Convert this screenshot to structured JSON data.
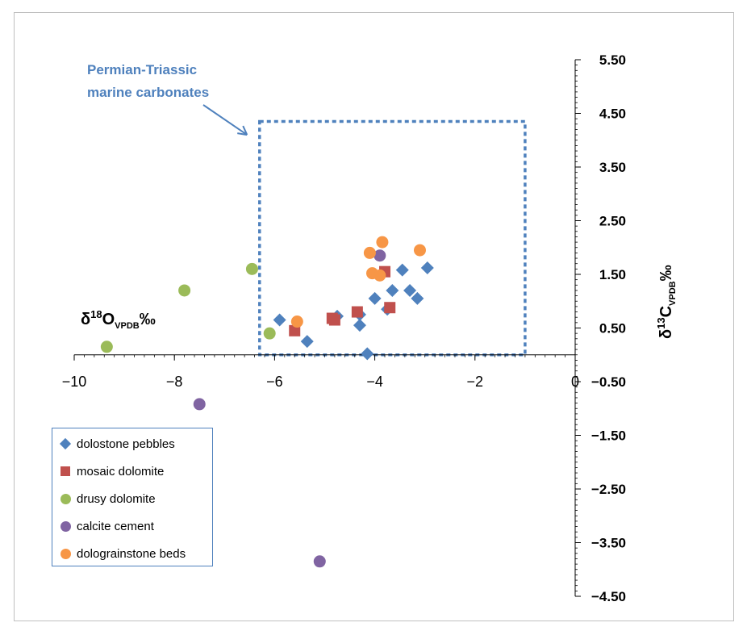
{
  "chart_data": {
    "type": "scatter",
    "title": "",
    "xlabel": "δ18O VPDB ‰",
    "ylabel": "δ13C VPDB ‰",
    "xlabel_parts": {
      "delta": "δ",
      "sup": "18",
      "base": "O",
      "sub": "VPDB",
      "unit": "‰"
    },
    "ylabel_parts": {
      "delta": "δ",
      "sup": "13",
      "base": "C",
      "sub": "VPDB",
      "unit": "‰"
    },
    "xlim": [
      -10,
      0
    ],
    "ylim": [
      -4.5,
      5.5
    ],
    "x_ticks": [
      -10,
      -8,
      -6,
      -4,
      -2,
      0
    ],
    "x_tick_labels": [
      "−10",
      "−8",
      "−6",
      "−4",
      "−2",
      "0"
    ],
    "y_ticks": [
      5.5,
      4.5,
      3.5,
      2.5,
      1.5,
      0.5,
      -0.5,
      -1.5,
      -2.5,
      -3.5,
      -4.5
    ],
    "y_tick_labels": [
      "5.50",
      "4.50",
      "3.50",
      "2.50",
      "1.50",
      "0.50",
      "−0.50",
      "−1.50",
      "−2.50",
      "−3.50",
      "−4.50"
    ],
    "grid": false,
    "legend_position": "bottom-left",
    "annotation": {
      "lines": [
        "Permian-Triassic",
        "marine carbonates"
      ],
      "box": {
        "x0": -6.3,
        "x1": -1.0,
        "y0": 0.0,
        "y1": 4.35
      },
      "arrow_to": {
        "x": -6.55,
        "y": 4.1
      }
    },
    "series": [
      {
        "name": "dolostone pebbles",
        "marker": "diamond",
        "color": "#4f81bd",
        "points": [
          [
            -5.9,
            0.65
          ],
          [
            -5.35,
            0.25
          ],
          [
            -4.75,
            0.72
          ],
          [
            -4.3,
            0.55
          ],
          [
            -4.3,
            0.75
          ],
          [
            -4.15,
            0.02
          ],
          [
            -4.0,
            1.05
          ],
          [
            -3.75,
            0.85
          ],
          [
            -3.65,
            1.2
          ],
          [
            -3.45,
            1.58
          ],
          [
            -3.3,
            1.2
          ],
          [
            -3.15,
            1.05
          ],
          [
            -2.95,
            1.62
          ]
        ]
      },
      {
        "name": "mosaic dolomite",
        "marker": "square",
        "color": "#c0504d",
        "points": [
          [
            -5.6,
            0.45
          ],
          [
            -4.85,
            0.68
          ],
          [
            -4.8,
            0.65
          ],
          [
            -4.35,
            0.8
          ],
          [
            -3.8,
            1.55
          ],
          [
            -3.7,
            0.88
          ]
        ]
      },
      {
        "name": "drusy dolomite",
        "marker": "circle",
        "color": "#9bbb59",
        "points": [
          [
            -9.35,
            0.15
          ],
          [
            -7.8,
            1.2
          ],
          [
            -6.45,
            1.6
          ],
          [
            -6.1,
            0.4
          ]
        ]
      },
      {
        "name": "calcite cement",
        "marker": "circle",
        "color": "#8064a2",
        "points": [
          [
            -7.5,
            -0.92
          ],
          [
            -5.1,
            -3.85
          ],
          [
            -3.9,
            1.85
          ]
        ]
      },
      {
        "name": "dolograinstone beds",
        "marker": "circle",
        "color": "#f79646",
        "points": [
          [
            -5.55,
            0.62
          ],
          [
            -4.1,
            1.9
          ],
          [
            -4.05,
            1.52
          ],
          [
            -3.9,
            1.48
          ],
          [
            -3.85,
            2.1
          ],
          [
            -3.1,
            1.95
          ]
        ]
      }
    ]
  }
}
